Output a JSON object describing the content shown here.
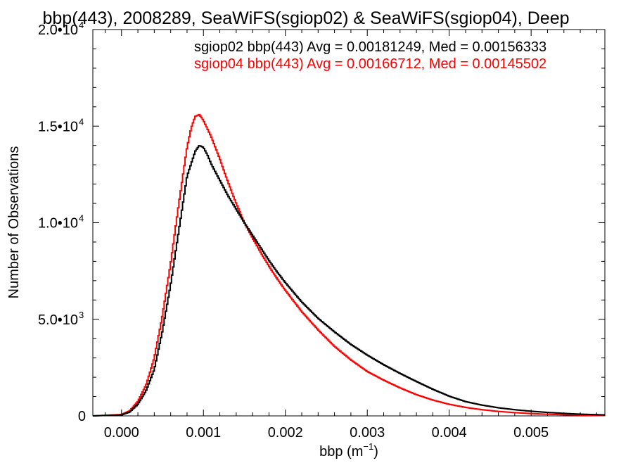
{
  "chart_data": {
    "type": "line",
    "title": "bbp(443), 2008289, SeaWiFS(sgiop02) & SeaWiFS(sgiop04), Deep",
    "xlabel_base": "bbp (m",
    "xlabel_exp": "−1",
    "xlabel_close": ")",
    "ylabel": "Number of Observations",
    "xlim": [
      -0.00035,
      0.0059
    ],
    "ylim": [
      0,
      20000
    ],
    "grid": false,
    "legend_placement": "top-right",
    "x_ticks": [
      {
        "value": 0.0,
        "label": "0.000"
      },
      {
        "value": 0.001,
        "label": "0.001"
      },
      {
        "value": 0.002,
        "label": "0.002"
      },
      {
        "value": 0.003,
        "label": "0.003"
      },
      {
        "value": 0.004,
        "label": "0.004"
      },
      {
        "value": 0.005,
        "label": "0.005"
      }
    ],
    "y_ticks": [
      {
        "value": 0,
        "mantissa": "0",
        "exp": ""
      },
      {
        "value": 5000,
        "mantissa": "5.0•10",
        "exp": "3"
      },
      {
        "value": 10000,
        "mantissa": "1.0•10",
        "exp": "4"
      },
      {
        "value": 15000,
        "mantissa": "1.5•10",
        "exp": "4"
      },
      {
        "value": 20000,
        "mantissa": "2.0•10",
        "exp": "4"
      }
    ],
    "series": [
      {
        "name": "sgiop02",
        "legend": "sgiop02 bbp(443) Avg = 0.00181249, Med = 0.00156333",
        "color": "#000000",
        "x": [
          -0.00035,
          0.0,
          0.0001,
          0.0002,
          0.0003,
          0.0004,
          0.0005,
          0.0006,
          0.0007,
          0.0008,
          0.0009,
          0.00095,
          0.001,
          0.00105,
          0.0011,
          0.0012,
          0.0013,
          0.0014,
          0.0015,
          0.0016,
          0.0017,
          0.0018,
          0.0019,
          0.002,
          0.0022,
          0.0024,
          0.0026,
          0.0028,
          0.003,
          0.0032,
          0.0034,
          0.0036,
          0.0038,
          0.004,
          0.0042,
          0.0044,
          0.0046,
          0.0048,
          0.005,
          0.0052,
          0.0054,
          0.0056,
          0.0059
        ],
        "values": [
          0,
          50,
          200,
          600,
          1300,
          2400,
          4400,
          6800,
          9600,
          12400,
          13700,
          14000,
          13900,
          13500,
          13000,
          12200,
          11400,
          10700,
          10000,
          9350,
          8700,
          8050,
          7450,
          6900,
          5900,
          5050,
          4350,
          3700,
          3150,
          2650,
          2200,
          1780,
          1380,
          1020,
          740,
          560,
          420,
          320,
          240,
          180,
          130,
          90,
          50
        ]
      },
      {
        "name": "sgiop04",
        "legend": "sgiop04 bbp(443) Avg = 0.00166712, Med = 0.00145502",
        "color": "#ff0000",
        "x": [
          -0.00035,
          0.0,
          0.0001,
          0.0002,
          0.0003,
          0.0004,
          0.0005,
          0.0006,
          0.0007,
          0.0008,
          0.00085,
          0.0009,
          0.00095,
          0.001,
          0.0011,
          0.0012,
          0.0013,
          0.0014,
          0.0015,
          0.0016,
          0.0017,
          0.0018,
          0.0019,
          0.002,
          0.0022,
          0.0024,
          0.0026,
          0.0028,
          0.003,
          0.0032,
          0.0034,
          0.0036,
          0.0038,
          0.004,
          0.0042,
          0.0044,
          0.0046,
          0.0048,
          0.005,
          0.0052,
          0.0054,
          0.0056,
          0.0059
        ],
        "values": [
          0,
          70,
          260,
          750,
          1600,
          3000,
          5200,
          7900,
          11000,
          13900,
          14900,
          15500,
          15600,
          15300,
          14400,
          13300,
          12100,
          11000,
          10000,
          9200,
          8450,
          7750,
          7100,
          6500,
          5400,
          4450,
          3600,
          2900,
          2300,
          1850,
          1450,
          1100,
          820,
          600,
          440,
          320,
          230,
          170,
          120,
          85,
          60,
          40,
          20
        ]
      }
    ]
  }
}
